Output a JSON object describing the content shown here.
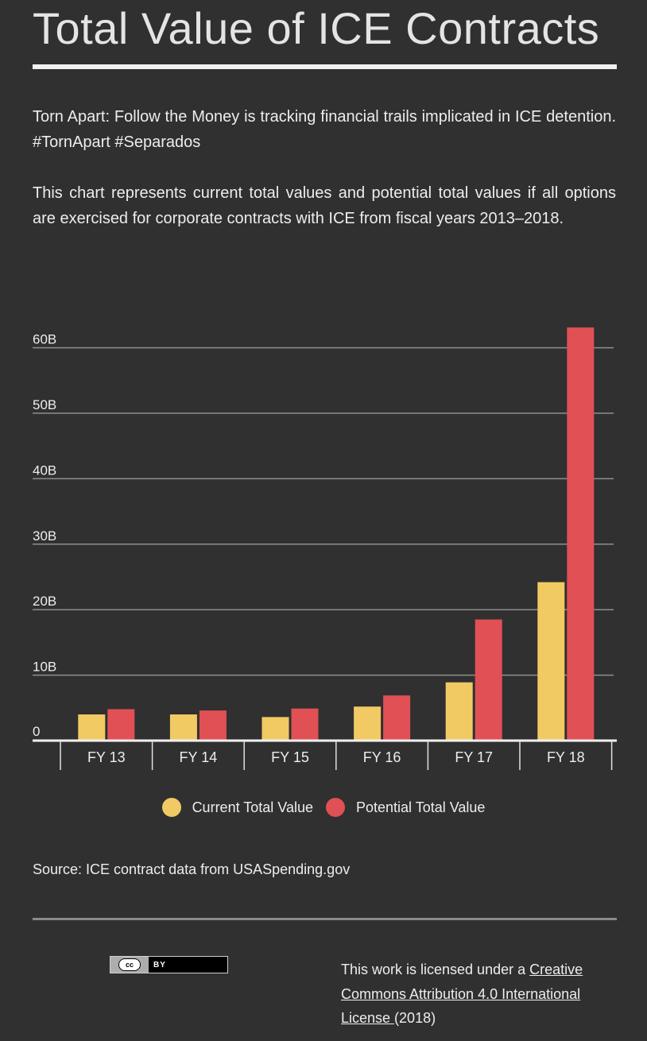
{
  "page": {
    "title": "Total Value of ICE Contracts",
    "intro_1": "Torn Apart: Follow the Money is tracking financial trails implicated in ICE detention. #TornApart #Separados",
    "intro_2": "This chart represents current total values and potential total values if all options are exercised for corporate contracts with ICE from fiscal years 2013–2018.",
    "source": "Source: ICE contract data from USASpending.gov"
  },
  "footer": {
    "cc_badge_symbol": "cc",
    "cc_badge_label": "BY",
    "license_prefix": "This work is licensed under a ",
    "license_link": "Creative Commons Attribution 4.0 International License ",
    "license_suffix": "(2018)"
  },
  "colors": {
    "background": "#303030",
    "current": "#f2ca64",
    "potential": "#e05055",
    "gridline": "#8e8e8e",
    "text": "#ededed"
  },
  "chart_data": {
    "type": "bar",
    "title": "",
    "xlabel": "",
    "ylabel": "",
    "categories": [
      "FY 13",
      "FY 14",
      "FY 15",
      "FY 16",
      "FY 17",
      "FY 18"
    ],
    "series": [
      {
        "name": "Current Total Value",
        "color": "#f2ca64",
        "values": [
          4.0,
          4.0,
          3.6,
          5.2,
          8.9,
          24.2
        ]
      },
      {
        "name": "Potential Total Value",
        "color": "#e05055",
        "values": [
          4.8,
          4.6,
          4.9,
          6.9,
          18.5,
          63.1
        ]
      }
    ],
    "ylim": [
      0,
      63.5
    ],
    "yticks": [
      0,
      10,
      20,
      30,
      40,
      50,
      60
    ],
    "ytick_labels": [
      "0",
      "10B",
      "20B",
      "30B",
      "40B",
      "50B",
      "60B"
    ],
    "unit": "B",
    "grid": true,
    "legend_position": "bottom-center"
  }
}
